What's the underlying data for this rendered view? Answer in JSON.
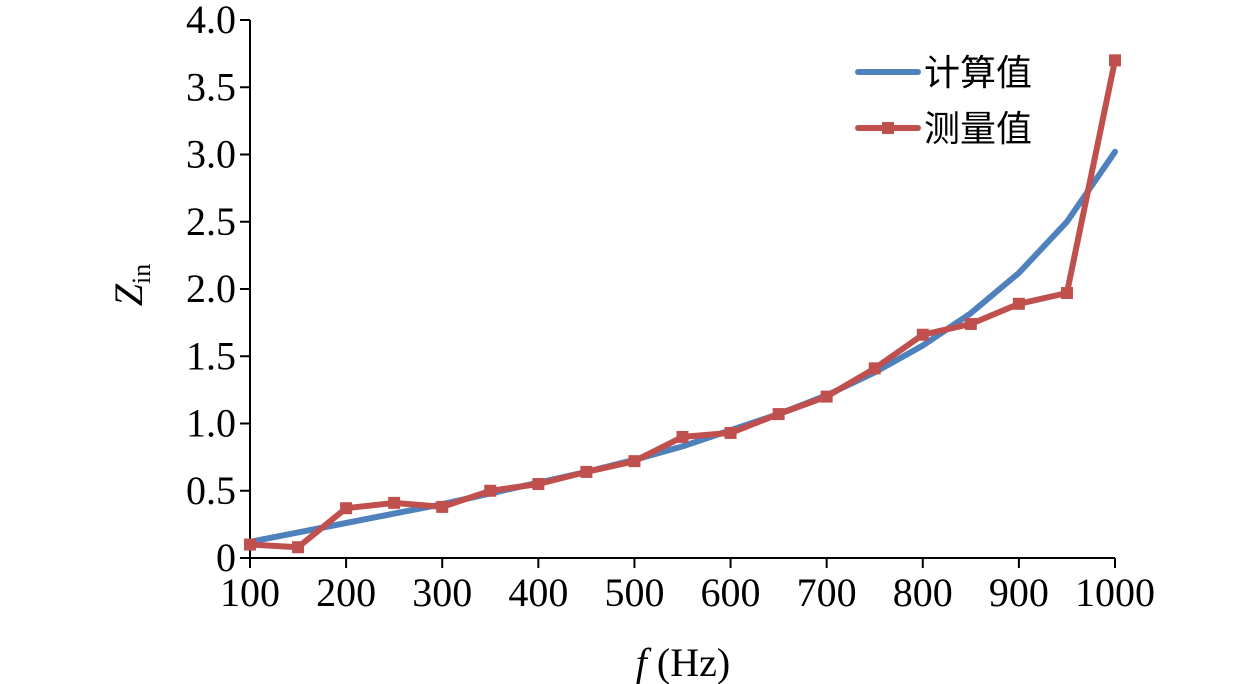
{
  "chart_data": {
    "type": "line",
    "title": "",
    "xlabel": {
      "var": "f",
      "unit": " (Hz)"
    },
    "ylabel": {
      "var": "Z",
      "sub": "in"
    },
    "xlim": [
      100,
      1000
    ],
    "ylim": [
      0,
      4.0
    ],
    "x_ticks": [
      100,
      200,
      300,
      400,
      500,
      600,
      700,
      800,
      900,
      1000
    ],
    "x_tick_labels": [
      "100",
      "200",
      "300",
      "400",
      "500",
      "600",
      "700",
      "800",
      "900",
      "1000"
    ],
    "y_ticks": [
      0,
      0.5,
      1.0,
      1.5,
      2.0,
      2.5,
      3.0,
      3.5,
      4.0
    ],
    "y_tick_labels": [
      "0",
      "0.5",
      "1.0",
      "1.5",
      "2.0",
      "2.5",
      "3.0",
      "3.5",
      "4.0"
    ],
    "grid": false,
    "legend_position": "top-right",
    "series": [
      {
        "name": "计算值",
        "color": "#4F81BD",
        "marker": "none",
        "x": [
          100,
          150,
          200,
          250,
          300,
          350,
          400,
          450,
          500,
          550,
          600,
          650,
          700,
          750,
          800,
          850,
          900,
          950,
          1000
        ],
        "y": [
          0.12,
          0.19,
          0.26,
          0.33,
          0.4,
          0.48,
          0.56,
          0.64,
          0.73,
          0.83,
          0.95,
          1.07,
          1.21,
          1.38,
          1.58,
          1.82,
          2.12,
          2.5,
          3.02
        ]
      },
      {
        "name": "测量值",
        "color": "#C0504D",
        "marker": "square",
        "x": [
          100,
          150,
          200,
          250,
          300,
          350,
          400,
          450,
          500,
          550,
          600,
          650,
          700,
          750,
          800,
          850,
          900,
          950,
          1000
        ],
        "y": [
          0.1,
          0.08,
          0.37,
          0.41,
          0.38,
          0.5,
          0.55,
          0.64,
          0.72,
          0.9,
          0.93,
          1.07,
          1.2,
          1.41,
          1.66,
          1.74,
          1.89,
          1.97,
          3.7
        ]
      }
    ]
  }
}
